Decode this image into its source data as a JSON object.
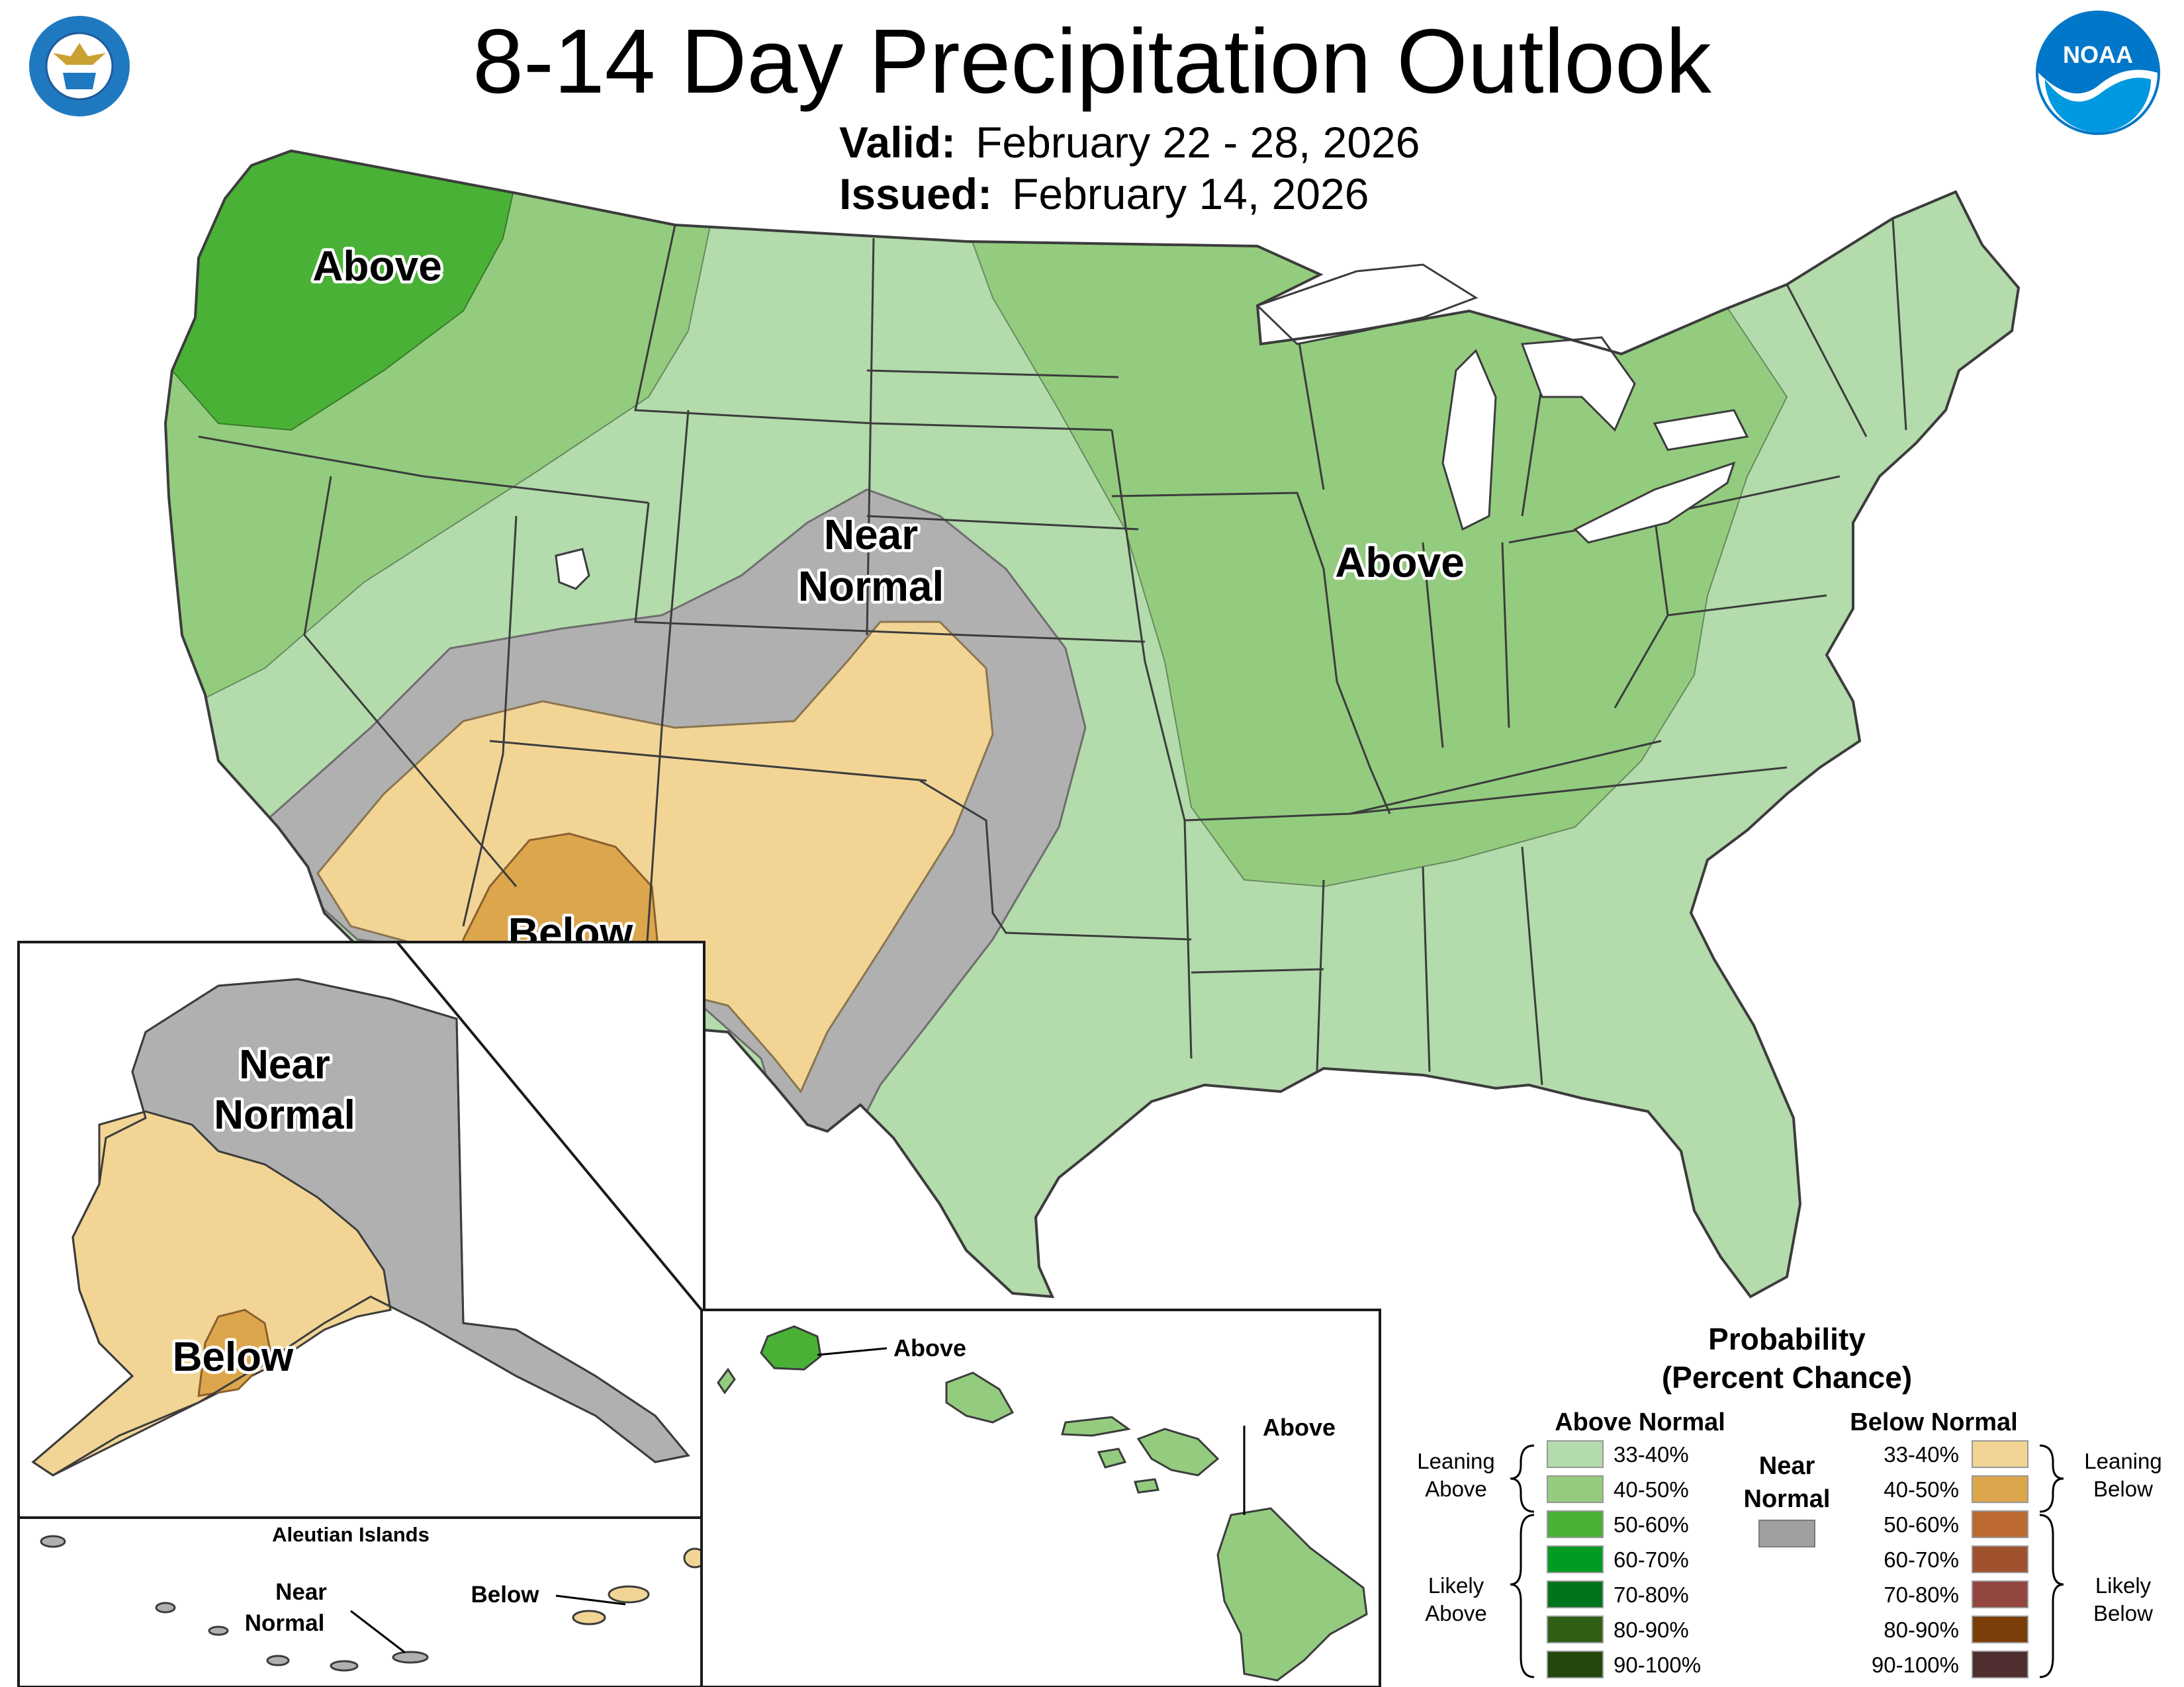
{
  "title": "8-14 Day Precipitation Outlook",
  "valid": {
    "label": "Valid:",
    "value": "February 22 - 28, 2026"
  },
  "issued": {
    "label": "Issued:",
    "value": "February 14, 2026"
  },
  "logos": {
    "left": "DEPARTMENT OF COMMERCE · UNITED STATES OF AMERICA",
    "right": "NOAA"
  },
  "map_labels": {
    "conus_nw": "Above",
    "conus_east": "Above",
    "conus_near": [
      "Near",
      "Normal"
    ],
    "conus_below": "Below",
    "ak_near": [
      "Near",
      "Normal"
    ],
    "ak_below": "Below",
    "aleutian_title": "Aleutian Islands",
    "aleutian_near": [
      "Near",
      "Normal"
    ],
    "aleutian_below": "Below",
    "hi_above_1": "Above",
    "hi_above_2": "Above"
  },
  "legend": {
    "title_1": "Probability",
    "title_2": "(Percent Chance)",
    "above_header": "Above Normal",
    "below_header": "Below Normal",
    "near_1": "Near",
    "near_2": "Normal",
    "near_color": "#a0a0a0",
    "leaning_above": [
      "Leaning",
      "Above"
    ],
    "likely_above": [
      "Likely",
      "Above"
    ],
    "leaning_below": [
      "Leaning",
      "Below"
    ],
    "likely_below": [
      "Likely",
      "Below"
    ],
    "above": [
      {
        "range": "33-40%",
        "color": "#b3dbab"
      },
      {
        "range": "40-50%",
        "color": "#93cc7e"
      },
      {
        "range": "50-60%",
        "color": "#49b236"
      },
      {
        "range": "60-70%",
        "color": "#009b22"
      },
      {
        "range": "70-80%",
        "color": "#00741b"
      },
      {
        "range": "80-90%",
        "color": "#2f5e15"
      },
      {
        "range": "90-100%",
        "color": "#23470c"
      }
    ],
    "below": [
      {
        "range": "33-40%",
        "color": "#f2d595"
      },
      {
        "range": "40-50%",
        "color": "#dca64c"
      },
      {
        "range": "50-60%",
        "color": "#bd6a32"
      },
      {
        "range": "60-70%",
        "color": "#a0522d"
      },
      {
        "range": "70-80%",
        "color": "#93463f"
      },
      {
        "range": "80-90%",
        "color": "#7c3e08"
      },
      {
        "range": "90-100%",
        "color": "#4e2e2f"
      }
    ]
  }
}
